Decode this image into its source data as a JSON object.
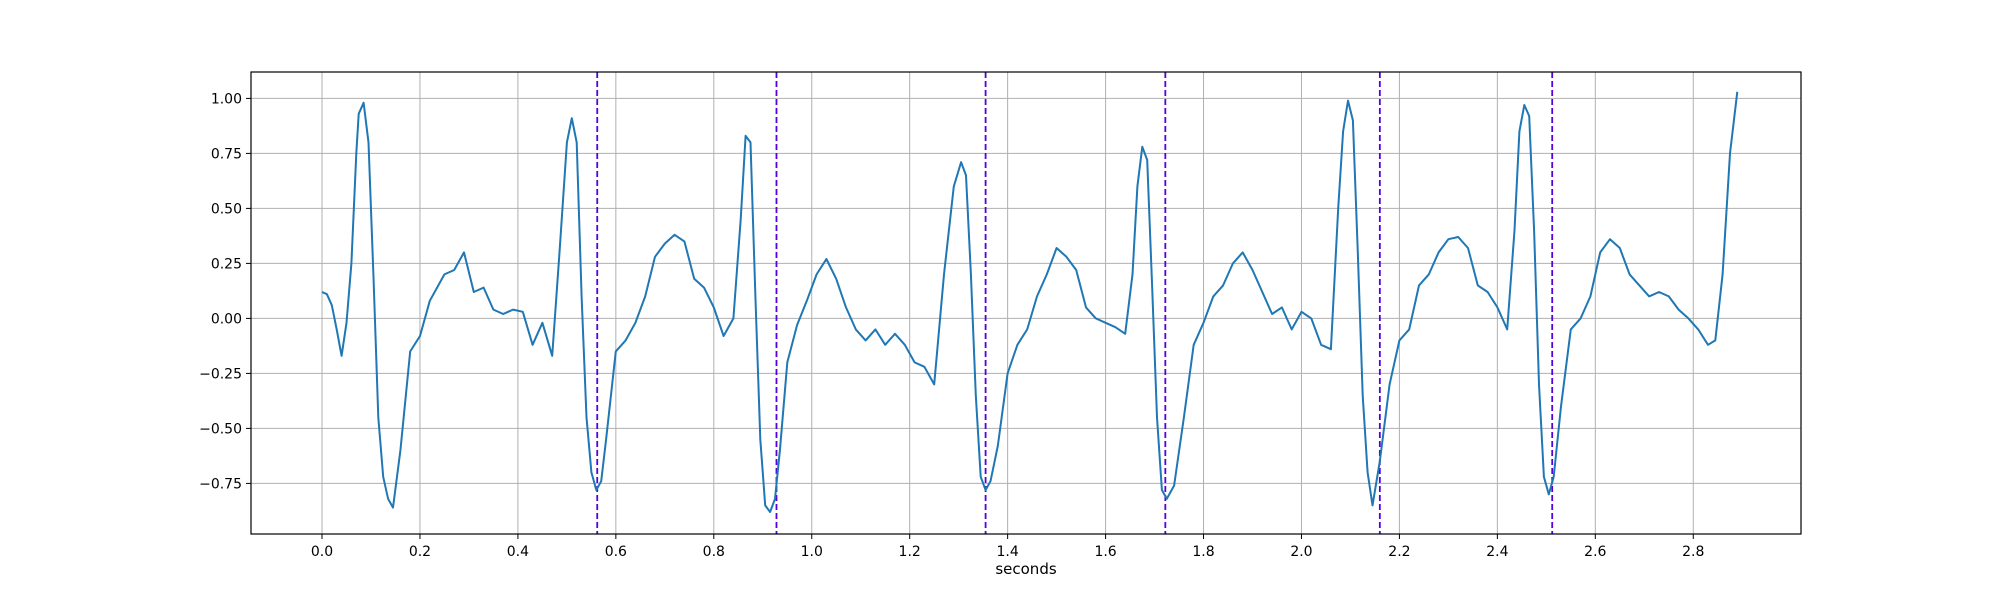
{
  "chart_data": {
    "type": "line",
    "title": "",
    "xlabel": "seconds",
    "ylabel": "",
    "xlim": [
      -0.145,
      3.02
    ],
    "ylim": [
      -0.98,
      1.12
    ],
    "grid": true,
    "legend": "none",
    "x_ticks": [
      0.0,
      0.2,
      0.4,
      0.6,
      0.8,
      1.0,
      1.2,
      1.4,
      1.6,
      1.8,
      2.0,
      2.2,
      2.4,
      2.6,
      2.8
    ],
    "x_tick_labels": [
      "0.0",
      "0.2",
      "0.4",
      "0.6",
      "0.8",
      "1.0",
      "1.2",
      "1.4",
      "1.6",
      "1.8",
      "2.0",
      "2.2",
      "2.4",
      "2.6",
      "2.8"
    ],
    "y_ticks": [
      -0.75,
      -0.5,
      -0.25,
      0.0,
      0.25,
      0.5,
      0.75,
      1.0
    ],
    "y_tick_labels": [
      "−0.75",
      "−0.50",
      "−0.25",
      "0.00",
      "0.25",
      "0.50",
      "0.75",
      "1.00"
    ],
    "series": [
      {
        "color": "#1f77b4",
        "x": [
          0.0,
          0.01,
          0.02,
          0.03,
          0.04,
          0.05,
          0.06,
          0.07,
          0.075,
          0.085,
          0.095,
          0.105,
          0.115,
          0.125,
          0.135,
          0.145,
          0.16,
          0.18,
          0.2,
          0.22,
          0.25,
          0.27,
          0.29,
          0.31,
          0.33,
          0.35,
          0.37,
          0.39,
          0.41,
          0.43,
          0.45,
          0.47,
          0.485,
          0.5,
          0.51,
          0.52,
          0.53,
          0.54,
          0.55,
          0.56,
          0.57,
          0.58,
          0.6,
          0.62,
          0.64,
          0.66,
          0.68,
          0.7,
          0.72,
          0.74,
          0.76,
          0.78,
          0.8,
          0.82,
          0.84,
          0.855,
          0.865,
          0.875,
          0.885,
          0.895,
          0.905,
          0.915,
          0.925,
          0.935,
          0.95,
          0.97,
          0.99,
          1.01,
          1.03,
          1.05,
          1.07,
          1.09,
          1.11,
          1.13,
          1.15,
          1.17,
          1.19,
          1.21,
          1.23,
          1.25,
          1.27,
          1.29,
          1.305,
          1.315,
          1.325,
          1.335,
          1.345,
          1.355,
          1.365,
          1.38,
          1.4,
          1.42,
          1.44,
          1.46,
          1.48,
          1.5,
          1.52,
          1.54,
          1.56,
          1.58,
          1.6,
          1.62,
          1.64,
          1.655,
          1.665,
          1.675,
          1.685,
          1.695,
          1.705,
          1.715,
          1.725,
          1.74,
          1.76,
          1.78,
          1.8,
          1.82,
          1.84,
          1.86,
          1.88,
          1.9,
          1.92,
          1.94,
          1.96,
          1.98,
          2.0,
          2.02,
          2.04,
          2.06,
          2.075,
          2.085,
          2.095,
          2.105,
          2.115,
          2.125,
          2.135,
          2.145,
          2.16,
          2.18,
          2.2,
          2.22,
          2.24,
          2.26,
          2.28,
          2.3,
          2.32,
          2.34,
          2.36,
          2.38,
          2.4,
          2.42,
          2.435,
          2.445,
          2.455,
          2.465,
          2.475,
          2.485,
          2.495,
          2.505,
          2.515,
          2.53,
          2.55,
          2.57,
          2.59,
          2.61,
          2.63,
          2.65,
          2.67,
          2.69,
          2.71,
          2.73,
          2.75,
          2.77,
          2.79,
          2.81,
          2.83,
          2.845,
          2.86,
          2.875,
          2.89
        ],
        "y": [
          0.12,
          0.11,
          0.06,
          -0.05,
          -0.17,
          -0.02,
          0.25,
          0.75,
          0.93,
          0.98,
          0.8,
          0.2,
          -0.45,
          -0.72,
          -0.82,
          -0.86,
          -0.6,
          -0.15,
          -0.08,
          0.08,
          0.2,
          0.22,
          0.3,
          0.12,
          0.14,
          0.04,
          0.02,
          0.04,
          0.03,
          -0.12,
          -0.02,
          -0.17,
          0.3,
          0.8,
          0.91,
          0.8,
          0.1,
          -0.45,
          -0.7,
          -0.78,
          -0.74,
          -0.55,
          -0.15,
          -0.1,
          -0.02,
          0.1,
          0.28,
          0.34,
          0.38,
          0.35,
          0.18,
          0.14,
          0.05,
          -0.08,
          0.0,
          0.45,
          0.83,
          0.8,
          0.1,
          -0.55,
          -0.85,
          -0.88,
          -0.82,
          -0.6,
          -0.2,
          -0.03,
          0.08,
          0.2,
          0.27,
          0.18,
          0.05,
          -0.05,
          -0.1,
          -0.05,
          -0.12,
          -0.07,
          -0.12,
          -0.2,
          -0.22,
          -0.3,
          0.2,
          0.6,
          0.71,
          0.65,
          0.2,
          -0.35,
          -0.72,
          -0.78,
          -0.74,
          -0.58,
          -0.25,
          -0.12,
          -0.05,
          0.1,
          0.2,
          0.32,
          0.28,
          0.22,
          0.05,
          0.0,
          -0.02,
          -0.04,
          -0.07,
          0.2,
          0.6,
          0.78,
          0.72,
          0.15,
          -0.45,
          -0.78,
          -0.82,
          -0.76,
          -0.45,
          -0.12,
          -0.02,
          0.1,
          0.15,
          0.25,
          0.3,
          0.22,
          0.12,
          0.02,
          0.05,
          -0.05,
          0.03,
          0.0,
          -0.12,
          -0.14,
          0.5,
          0.85,
          0.99,
          0.9,
          0.3,
          -0.35,
          -0.7,
          -0.85,
          -0.65,
          -0.3,
          -0.1,
          -0.05,
          0.15,
          0.2,
          0.3,
          0.36,
          0.37,
          0.32,
          0.15,
          0.12,
          0.05,
          -0.05,
          0.4,
          0.85,
          0.97,
          0.92,
          0.4,
          -0.3,
          -0.72,
          -0.8,
          -0.72,
          -0.4,
          -0.05,
          0.0,
          0.1,
          0.3,
          0.36,
          0.32,
          0.2,
          0.15,
          0.1,
          0.12,
          0.1,
          0.04,
          0.0,
          -0.05,
          -0.12,
          -0.1,
          0.2,
          0.75,
          1.03
        ]
      }
    ],
    "vlines": {
      "color": "#5500dd",
      "style": "dashed",
      "x": [
        0.562,
        0.928,
        1.355,
        1.722,
        2.16,
        2.512
      ]
    }
  }
}
